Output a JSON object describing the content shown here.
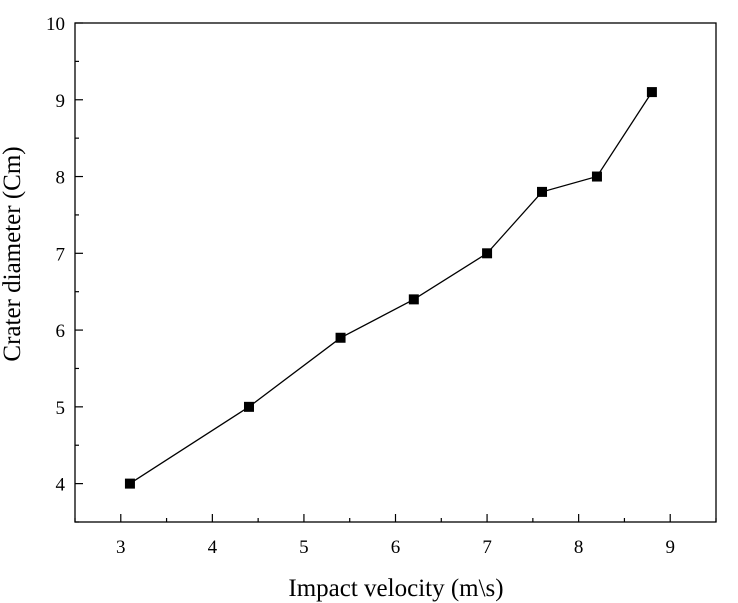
{
  "chart_data": {
    "type": "line",
    "title": "",
    "xlabel": "Impact velocity (m\\s)",
    "ylabel": "Crater diameter (Cm)",
    "xlim": [
      2.5,
      9.5
    ],
    "ylim": [
      3.5,
      10
    ],
    "xticks": [
      3,
      4,
      5,
      6,
      7,
      8,
      9
    ],
    "yticks": [
      4,
      5,
      6,
      7,
      8,
      9,
      10
    ],
    "grid": false,
    "marker": "square",
    "color": "#000000",
    "series": [
      {
        "x": [
          3.1,
          4.4,
          5.4,
          6.2,
          7.0,
          7.6,
          8.2,
          8.8
        ],
        "y": [
          4.0,
          5.0,
          5.9,
          6.4,
          7.0,
          7.8,
          8.0,
          9.1
        ]
      }
    ]
  }
}
